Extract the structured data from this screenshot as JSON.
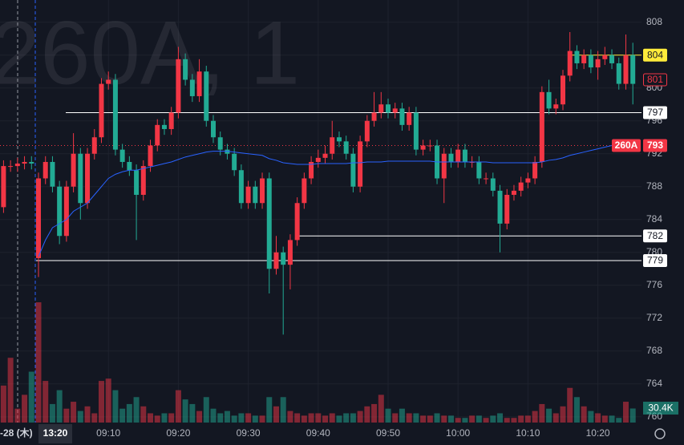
{
  "chart_data": {
    "type": "candlestick",
    "watermark": "260A, 1",
    "up_color": "#f23645",
    "down_color": "#22ab94",
    "grid": true,
    "categories": [
      null,
      null,
      null,
      null,
      null,
      null,
      null,
      null,
      null,
      null,
      null,
      null,
      null,
      null,
      null,
      "09:10",
      null,
      null,
      null,
      null,
      null,
      null,
      null,
      null,
      null,
      "09:20",
      null,
      null,
      null,
      null,
      null,
      null,
      null,
      null,
      null,
      "09:30",
      null,
      null,
      null,
      null,
      null,
      null,
      null,
      null,
      null,
      "09:40",
      null,
      null,
      null,
      null,
      null,
      null,
      null,
      null,
      null,
      "09:50",
      null,
      null,
      null,
      null,
      null,
      null,
      null,
      null,
      null,
      "10:00",
      null,
      null,
      null,
      null,
      null,
      null,
      null,
      null,
      null,
      "10:10",
      null,
      null,
      null,
      null,
      null,
      null,
      null,
      null,
      null,
      "10:20",
      null,
      null,
      null,
      null,
      null
    ],
    "open": [
      785.5,
      790.5,
      790.5,
      790.8,
      791,
      779.3,
      789,
      791,
      788,
      782,
      788,
      792,
      786,
      792,
      794,
      800.5,
      801,
      792.5,
      791,
      790,
      787,
      790.5,
      793,
      795.5,
      795,
      797,
      803.5,
      801,
      799,
      802,
      796,
      794,
      792.5,
      792,
      790,
      786,
      788,
      786,
      789,
      778,
      780,
      778.5,
      781.5,
      786,
      789,
      791,
      791.5,
      792,
      794,
      793.5,
      792,
      788,
      793.5,
      796,
      797,
      798,
      797,
      797.5,
      795.5,
      797,
      792.5,
      793,
      793,
      789,
      792,
      791,
      792.5,
      791,
      791,
      789,
      789,
      787.5,
      783.5,
      787,
      787.5,
      788.5,
      789,
      791,
      799.5,
      797.5,
      798,
      801.5,
      804.5,
      803,
      804,
      802.5,
      803.5,
      804,
      803,
      800.5,
      804
    ],
    "high": [
      791.2,
      791.2,
      791.5,
      791.7,
      791.7,
      789.7,
      791.7,
      791.7,
      788.7,
      788.7,
      794.5,
      792.7,
      792.7,
      795,
      801.2,
      802,
      801.7,
      793.2,
      791.7,
      790.7,
      791.2,
      793.7,
      796.2,
      796.2,
      797.7,
      805,
      804.2,
      801.7,
      803.5,
      802.7,
      796.7,
      794.7,
      793.2,
      792.7,
      790.7,
      788.7,
      788.7,
      789.7,
      789.7,
      782,
      780.7,
      782.2,
      786.7,
      789.7,
      791.7,
      792.5,
      793,
      796,
      794.7,
      794.2,
      792.7,
      794.2,
      796.7,
      799.5,
      799.5,
      798.7,
      798.2,
      798.2,
      797.7,
      797.7,
      793.7,
      793.7,
      793.7,
      792.7,
      792.7,
      793.2,
      793.2,
      791.7,
      791.7,
      789.7,
      789.7,
      788.2,
      787.7,
      788.2,
      789.2,
      789.7,
      791.7,
      800.2,
      801,
      798.7,
      802.2,
      806.8,
      805.2,
      804.7,
      804.7,
      804.5,
      805,
      804.7,
      803.7,
      806.5,
      805.5
    ],
    "low": [
      784.8,
      789.8,
      789.8,
      790.1,
      790.1,
      777,
      788.3,
      787.3,
      781,
      781.3,
      787.3,
      784,
      785.3,
      791.3,
      793.3,
      799.8,
      791.8,
      790.3,
      789.3,
      781.5,
      786.3,
      789.8,
      792.3,
      794.3,
      794.3,
      796.3,
      800.3,
      798.3,
      798.3,
      795.3,
      793.3,
      791.8,
      791.3,
      789.3,
      785.3,
      785.3,
      785.3,
      785.3,
      775,
      777.3,
      770,
      775.5,
      780.8,
      785.3,
      788.3,
      790.3,
      790.8,
      791.3,
      792.8,
      791.3,
      787.3,
      787.3,
      792.8,
      795.3,
      796.3,
      796.3,
      796.3,
      794.8,
      794.8,
      791.8,
      791.8,
      792.3,
      788.3,
      786,
      790.3,
      790.3,
      790.3,
      790.3,
      788.3,
      788.3,
      786.8,
      780,
      782.8,
      786.3,
      786.8,
      787.8,
      788.3,
      790.3,
      796.8,
      796.8,
      797.3,
      800.8,
      802.3,
      802.3,
      801.8,
      801,
      802.8,
      802.3,
      799.8,
      799.8,
      798
    ],
    "close": [
      790.5,
      790.5,
      790.8,
      791,
      790.8,
      789,
      791,
      788,
      782,
      788,
      792,
      786,
      792,
      794,
      800.5,
      801,
      792.5,
      791,
      790,
      787,
      790.5,
      793,
      795.5,
      795,
      797,
      803.5,
      801,
      799,
      802,
      796,
      794,
      792.5,
      792,
      790,
      786,
      788,
      786,
      789,
      778,
      780,
      778.5,
      781.5,
      786,
      789,
      791,
      791.5,
      792,
      794,
      793.5,
      792,
      788,
      793.5,
      796,
      797,
      798,
      797,
      797.5,
      795.5,
      797,
      792.5,
      793,
      793,
      789,
      792,
      791,
      792.5,
      791,
      791,
      789,
      789,
      787.5,
      783.5,
      787,
      787.5,
      788.5,
      789,
      791,
      799.5,
      797.5,
      798,
      801.5,
      804.5,
      803,
      804,
      802.5,
      803.5,
      804,
      803,
      800.5,
      804,
      800.5
    ],
    "volume": {
      "values": [
        80,
        140,
        30,
        60,
        110,
        260,
        90,
        40,
        70,
        30,
        45,
        25,
        35,
        20,
        90,
        95,
        70,
        30,
        40,
        55,
        35,
        20,
        15,
        20,
        20,
        70,
        50,
        40,
        25,
        55,
        30,
        20,
        25,
        15,
        20,
        20,
        15,
        15,
        55,
        35,
        55,
        25,
        20,
        15,
        20,
        20,
        15,
        20,
        15,
        20,
        20,
        25,
        35,
        40,
        60,
        30,
        20,
        30,
        20,
        20,
        15,
        15,
        20,
        15,
        15,
        10,
        10,
        15,
        15,
        10,
        15,
        20,
        10,
        10,
        15,
        15,
        25,
        40,
        30,
        20,
        35,
        75,
        55,
        35,
        25,
        20,
        15,
        15,
        10,
        45,
        30.4
      ],
      "last_label": "30.4K"
    },
    "vwap": {
      "color": "#2962ff",
      "values": [
        null,
        null,
        null,
        null,
        null,
        779.5,
        781.5,
        783,
        783.5,
        784,
        785,
        785.5,
        786,
        787,
        788,
        789,
        789.5,
        789.8,
        790,
        790,
        790.2,
        790.4,
        790.6,
        790.8,
        791,
        791.3,
        791.6,
        791.8,
        792,
        792.2,
        792.3,
        792.3,
        792.3,
        792.2,
        792.1,
        792,
        791.9,
        791.8,
        791.4,
        791.2,
        790.9,
        790.8,
        790.7,
        790.7,
        790.7,
        790.8,
        790.8,
        790.8,
        790.8,
        790.8,
        790.9,
        790.9,
        791,
        791,
        791,
        791.1,
        791.1,
        791.1,
        791.1,
        791.1,
        791.1,
        791.1,
        791,
        791,
        791,
        791,
        791,
        791,
        791,
        791,
        790.9,
        790.9,
        790.9,
        790.9,
        790.9,
        790.9,
        790.9,
        791,
        791.2,
        791.3,
        791.5,
        791.8,
        792,
        792.2,
        792.4,
        792.6,
        792.8,
        793,
        793,
        793.1,
        793.2
      ]
    },
    "price_labels": [
      {
        "value": 804,
        "color": "#ffeb3b",
        "style": "fill"
      },
      {
        "value": 801,
        "color": "#f23645",
        "style": "outline"
      },
      {
        "value": 797,
        "color": "#ffffff",
        "style": "fill"
      },
      {
        "value": 782,
        "color": "#ffffff",
        "style": "fill"
      },
      {
        "value": 779,
        "color": "#ffffff",
        "style": "fill"
      },
      {
        "value": 793,
        "color": "#2962ff",
        "style": "outline"
      },
      {
        "value": 793,
        "color": "#f23645",
        "style": "fill",
        "symbol": "260A"
      }
    ],
    "crosshair": {
      "date_label": "-28 (木)",
      "time_label": "13:20"
    },
    "ylim": [
      759.3,
      810.7
    ],
    "yticks": [
      760,
      764,
      768,
      772,
      776,
      780,
      784,
      788,
      792,
      796,
      800,
      804,
      808
    ]
  }
}
